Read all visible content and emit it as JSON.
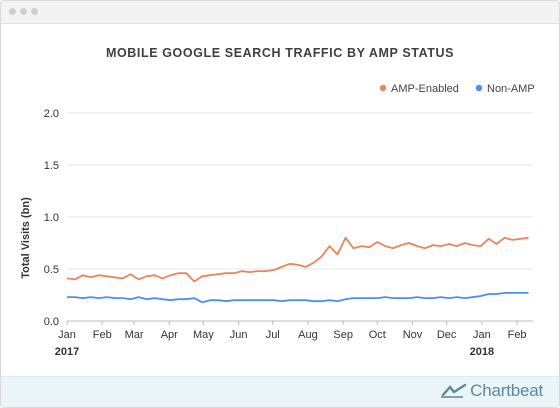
{
  "brand": {
    "name": "Chartbeat",
    "color": "#5a8a9a",
    "icon": "chartbeat-logo-icon"
  },
  "chart_data": {
    "type": "line",
    "title": "MOBILE GOOGLE SEARCH TRAFFIC BY AMP STATUS",
    "xlabel": "",
    "ylabel": "Total Visits (bn)",
    "ylim": [
      0,
      2.0
    ],
    "yticks": [
      0,
      0.5,
      1.0,
      1.5,
      2.0
    ],
    "ytick_labels": [
      "0.0",
      "0.5",
      "1.0",
      "1.5",
      "2.0"
    ],
    "xlim": [
      "2017-01-01",
      "2018-02-15"
    ],
    "xticks": [
      {
        "date": "2017-01-01",
        "label": "Jan"
      },
      {
        "date": "2017-02-01",
        "label": "Feb"
      },
      {
        "date": "2017-03-01",
        "label": "Mar"
      },
      {
        "date": "2017-04-01",
        "label": "Apr"
      },
      {
        "date": "2017-05-01",
        "label": "May"
      },
      {
        "date": "2017-06-01",
        "label": "Jun"
      },
      {
        "date": "2017-07-01",
        "label": "Jul"
      },
      {
        "date": "2017-08-01",
        "label": "Aug"
      },
      {
        "date": "2017-09-01",
        "label": "Sep"
      },
      {
        "date": "2017-10-01",
        "label": "Oct"
      },
      {
        "date": "2017-11-01",
        "label": "Nov"
      },
      {
        "date": "2017-12-01",
        "label": "Dec"
      },
      {
        "date": "2018-01-01",
        "label": "Jan"
      },
      {
        "date": "2018-02-01",
        "label": "Feb"
      }
    ],
    "year_labels": [
      {
        "date": "2017-01-01",
        "label": "2017"
      },
      {
        "date": "2018-01-01",
        "label": "2018"
      }
    ],
    "legend_position": "top-right",
    "grid": "horizontal",
    "series": [
      {
        "name": "AMP-Enabled",
        "color": "#e8875a",
        "x": [
          "2017-01-01",
          "2017-01-08",
          "2017-01-15",
          "2017-01-22",
          "2017-01-29",
          "2017-02-05",
          "2017-02-12",
          "2017-02-19",
          "2017-02-26",
          "2017-03-05",
          "2017-03-12",
          "2017-03-19",
          "2017-03-26",
          "2017-04-02",
          "2017-04-09",
          "2017-04-16",
          "2017-04-23",
          "2017-04-30",
          "2017-05-07",
          "2017-05-14",
          "2017-05-21",
          "2017-05-28",
          "2017-06-04",
          "2017-06-11",
          "2017-06-18",
          "2017-06-25",
          "2017-07-02",
          "2017-07-09",
          "2017-07-16",
          "2017-07-23",
          "2017-07-30",
          "2017-08-06",
          "2017-08-13",
          "2017-08-20",
          "2017-08-27",
          "2017-09-03",
          "2017-09-10",
          "2017-09-17",
          "2017-09-24",
          "2017-10-01",
          "2017-10-08",
          "2017-10-15",
          "2017-10-22",
          "2017-10-29",
          "2017-11-05",
          "2017-11-12",
          "2017-11-19",
          "2017-11-26",
          "2017-12-03",
          "2017-12-10",
          "2017-12-17",
          "2017-12-24",
          "2017-12-31",
          "2018-01-07",
          "2018-01-14",
          "2018-01-21",
          "2018-01-28",
          "2018-02-04",
          "2018-02-11"
        ],
        "values": [
          0.41,
          0.4,
          0.44,
          0.42,
          0.44,
          0.43,
          0.42,
          0.41,
          0.45,
          0.4,
          0.43,
          0.44,
          0.41,
          0.44,
          0.46,
          0.46,
          0.38,
          0.43,
          0.44,
          0.45,
          0.46,
          0.46,
          0.48,
          0.47,
          0.48,
          0.48,
          0.49,
          0.52,
          0.55,
          0.54,
          0.52,
          0.56,
          0.62,
          0.72,
          0.64,
          0.8,
          0.7,
          0.72,
          0.71,
          0.76,
          0.72,
          0.7,
          0.73,
          0.75,
          0.72,
          0.7,
          0.73,
          0.72,
          0.74,
          0.72,
          0.75,
          0.73,
          0.72,
          0.79,
          0.74,
          0.8,
          0.78,
          0.79,
          0.8
        ]
      },
      {
        "name": "Non-AMP",
        "color": "#4c8ef7",
        "x": [
          "2017-01-01",
          "2017-01-08",
          "2017-01-15",
          "2017-01-22",
          "2017-01-29",
          "2017-02-05",
          "2017-02-12",
          "2017-02-19",
          "2017-02-26",
          "2017-03-05",
          "2017-03-12",
          "2017-03-19",
          "2017-03-26",
          "2017-04-02",
          "2017-04-09",
          "2017-04-16",
          "2017-04-23",
          "2017-04-30",
          "2017-05-07",
          "2017-05-14",
          "2017-05-21",
          "2017-05-28",
          "2017-06-04",
          "2017-06-11",
          "2017-06-18",
          "2017-06-25",
          "2017-07-02",
          "2017-07-09",
          "2017-07-16",
          "2017-07-23",
          "2017-07-30",
          "2017-08-06",
          "2017-08-13",
          "2017-08-20",
          "2017-08-27",
          "2017-09-03",
          "2017-09-10",
          "2017-09-17",
          "2017-09-24",
          "2017-10-01",
          "2017-10-08",
          "2017-10-15",
          "2017-10-22",
          "2017-10-29",
          "2017-11-05",
          "2017-11-12",
          "2017-11-19",
          "2017-11-26",
          "2017-12-03",
          "2017-12-10",
          "2017-12-17",
          "2017-12-24",
          "2017-12-31",
          "2018-01-07",
          "2018-01-14",
          "2018-01-21",
          "2018-01-28",
          "2018-02-04",
          "2018-02-11"
        ],
        "values": [
          0.23,
          0.23,
          0.22,
          0.23,
          0.22,
          0.23,
          0.22,
          0.22,
          0.21,
          0.23,
          0.21,
          0.22,
          0.21,
          0.2,
          0.21,
          0.21,
          0.22,
          0.18,
          0.2,
          0.2,
          0.19,
          0.2,
          0.2,
          0.2,
          0.2,
          0.2,
          0.2,
          0.19,
          0.2,
          0.2,
          0.2,
          0.19,
          0.19,
          0.2,
          0.19,
          0.21,
          0.22,
          0.22,
          0.22,
          0.22,
          0.23,
          0.22,
          0.22,
          0.22,
          0.23,
          0.22,
          0.22,
          0.23,
          0.22,
          0.23,
          0.22,
          0.23,
          0.24,
          0.26,
          0.26,
          0.27,
          0.27,
          0.27,
          0.27
        ]
      }
    ]
  }
}
